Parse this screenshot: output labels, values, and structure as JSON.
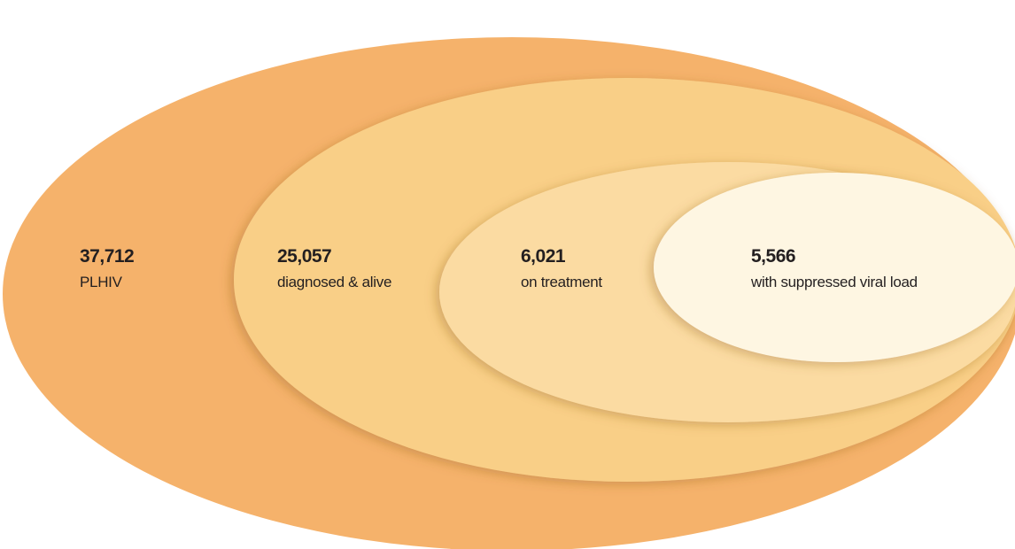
{
  "nodes": [
    {
      "value": "37,712",
      "label": "PLHIV"
    },
    {
      "value": "25,057",
      "label": "diagnosed & alive"
    },
    {
      "value": "6,021",
      "label": "on treatment"
    },
    {
      "value": "5,566",
      "label": "with suppressed viral load"
    }
  ]
}
